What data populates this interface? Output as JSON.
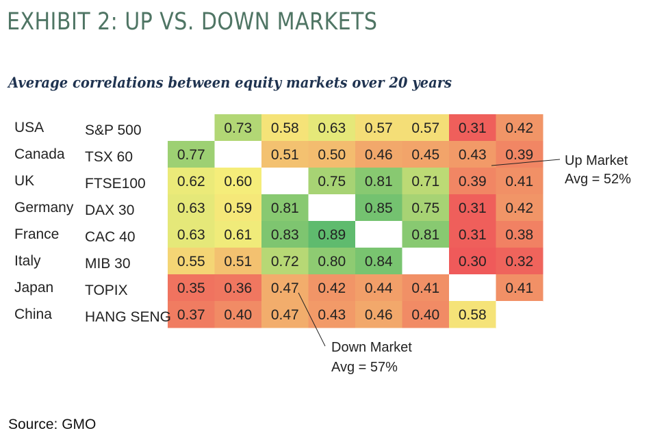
{
  "header": {
    "title": "EXHIBIT 2: UP VS. DOWN MARKETS",
    "subtitle": "Average correlations between equity markets over 20 years"
  },
  "footer": {
    "source": "Source: GMO"
  },
  "chart_data": {
    "type": "heatmap",
    "title": "EXHIBIT 2: UP VS. DOWN MARKETS",
    "subtitle": "Average correlations between equity markets over 20 years",
    "countries": [
      "USA",
      "Canada",
      "UK",
      "Germany",
      "France",
      "Italy",
      "Japan",
      "China"
    ],
    "indices": [
      "S&P 500",
      "TSX 60",
      "FTSE100",
      "DAX 30",
      "CAC 40",
      "MIB 30",
      "TOPIX",
      "HANG SENG"
    ],
    "values": [
      [
        null,
        0.73,
        0.58,
        0.63,
        0.57,
        0.57,
        0.31,
        0.42
      ],
      [
        0.77,
        null,
        0.51,
        0.5,
        0.46,
        0.45,
        0.43,
        0.39
      ],
      [
        0.62,
        0.6,
        null,
        0.75,
        0.81,
        0.71,
        0.39,
        0.41
      ],
      [
        0.63,
        0.59,
        0.81,
        null,
        0.85,
        0.75,
        0.31,
        0.42
      ],
      [
        0.63,
        0.61,
        0.83,
        0.89,
        null,
        0.81,
        0.31,
        0.38
      ],
      [
        0.55,
        0.51,
        0.72,
        0.8,
        0.84,
        null,
        0.3,
        0.32
      ],
      [
        0.35,
        0.36,
        0.47,
        0.42,
        0.44,
        0.41,
        null,
        0.41
      ],
      [
        0.37,
        0.4,
        0.47,
        0.43,
        0.46,
        0.4,
        0.58,
        null
      ]
    ],
    "annotations": {
      "up": [
        "Up Market",
        "Avg = 52%"
      ],
      "down": [
        "Down Market",
        "Avg = 57%"
      ]
    },
    "color_scale": {
      "low": "#ef5a5a",
      "mid": "#f5ed7a",
      "high": "#5fbb6e",
      "domain": [
        0.3,
        0.6,
        0.89
      ]
    }
  }
}
